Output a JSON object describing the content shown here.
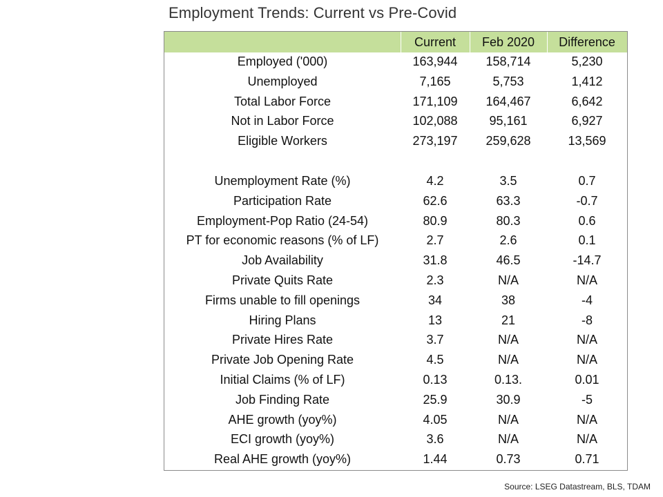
{
  "title": "Employment Trends: Current vs Pre-Covid",
  "columns": {
    "label": "",
    "current": "Current",
    "feb2020": "Feb 2020",
    "difference": "Difference"
  },
  "section1": [
    {
      "label": "Employed ('000)",
      "current": "163,944",
      "feb2020": "158,714",
      "difference": "5,230"
    },
    {
      "label": "Unemployed",
      "current": "7,165",
      "feb2020": "5,753",
      "difference": "1,412"
    },
    {
      "label": "Total Labor Force",
      "current": "171,109",
      "feb2020": "164,467",
      "difference": "6,642"
    },
    {
      "label": "Not in Labor Force",
      "current": "102,088",
      "feb2020": "95,161",
      "difference": "6,927"
    },
    {
      "label": "Eligible Workers",
      "current": "273,197",
      "feb2020": "259,628",
      "difference": "13,569"
    }
  ],
  "section2": [
    {
      "label": "Unemployment Rate (%)",
      "current": "4.2",
      "feb2020": "3.5",
      "difference": "0.7"
    },
    {
      "label": "Participation Rate",
      "current": "62.6",
      "feb2020": "63.3",
      "difference": "-0.7"
    },
    {
      "label": "Employment-Pop Ratio (24-54)",
      "current": "80.9",
      "feb2020": "80.3",
      "difference": "0.6"
    },
    {
      "label": "PT for economic reasons (% of LF)",
      "current": "2.7",
      "feb2020": "2.6",
      "difference": "0.1"
    },
    {
      "label": "Job Availability",
      "current": "31.8",
      "feb2020": "46.5",
      "difference": "-14.7"
    },
    {
      "label": "Private Quits Rate",
      "current": "2.3",
      "feb2020": "N/A",
      "difference": "N/A"
    },
    {
      "label": "Firms unable to fill openings",
      "current": "34",
      "feb2020": "38",
      "difference": "-4"
    },
    {
      "label": "Hiring Plans",
      "current": "13",
      "feb2020": "21",
      "difference": "-8"
    },
    {
      "label": "Private Hires Rate",
      "current": "3.7",
      "feb2020": "N/A",
      "difference": "N/A"
    },
    {
      "label": "Private Job Opening Rate",
      "current": "4.5",
      "feb2020": "N/A",
      "difference": "N/A"
    },
    {
      "label": "Initial Claims (% of LF)",
      "current": "0.13",
      "feb2020": "0.13.",
      "difference": "0.01"
    },
    {
      "label": "Job Finding Rate",
      "current": "25.9",
      "feb2020": "30.9",
      "difference": "-5"
    },
    {
      "label": "AHE growth (yoy%)",
      "current": "4.05",
      "feb2020": "N/A",
      "difference": "N/A"
    },
    {
      "label": "ECI growth (yoy%)",
      "current": "3.6",
      "feb2020": "N/A",
      "difference": "N/A"
    },
    {
      "label": "Real AHE growth (yoy%)",
      "current": "1.44",
      "feb2020": "0.73",
      "difference": "0.71"
    }
  ],
  "source": "Source: LSEG Datastream, BLS, TDAM",
  "colors": {
    "header_bg": "#c5df9b",
    "border": "#8a8a8a",
    "title": "#333333"
  }
}
